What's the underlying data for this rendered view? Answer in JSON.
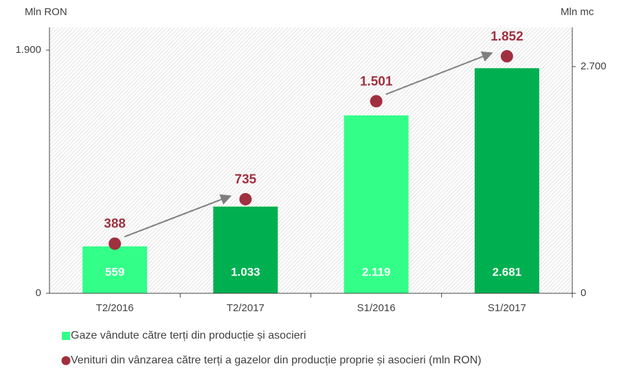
{
  "chart_data": {
    "type": "bar",
    "y_label": "Mln RON",
    "y2_label": "Mln mc",
    "categories": [
      "T2/2016",
      "T2/2017",
      "S1/2016",
      "S1/2017"
    ],
    "ylim": [
      0,
      2077
    ],
    "yticks": [
      0,
      {
        "value": 1900,
        "label": "1.900"
      }
    ],
    "y2lim": [
      0,
      3166
    ],
    "y2ticks": [
      0,
      {
        "value": 2700,
        "label": "2.700"
      }
    ],
    "series": [
      {
        "name": "Gaze vândute către terți din producție și asocieri",
        "type": "bar",
        "axis": "y2",
        "color": "#33ff88",
        "colors": [
          "#33ff88",
          "#00b050",
          "#33ff88",
          "#00b050"
        ],
        "values": [
          559,
          1033,
          2119,
          2681
        ],
        "value_labels": [
          "559",
          "1.033",
          "2.119",
          "2.681"
        ]
      },
      {
        "name": "Venituri din vânzarea către terți a gazelor din producție proprie și asocieri (mln RON)",
        "type": "scatter",
        "axis": "y",
        "color": "#a0303f",
        "values": [
          388,
          735,
          1501,
          1852
        ],
        "value_labels": [
          "388",
          "735",
          "1.501",
          "1.852"
        ]
      }
    ]
  }
}
